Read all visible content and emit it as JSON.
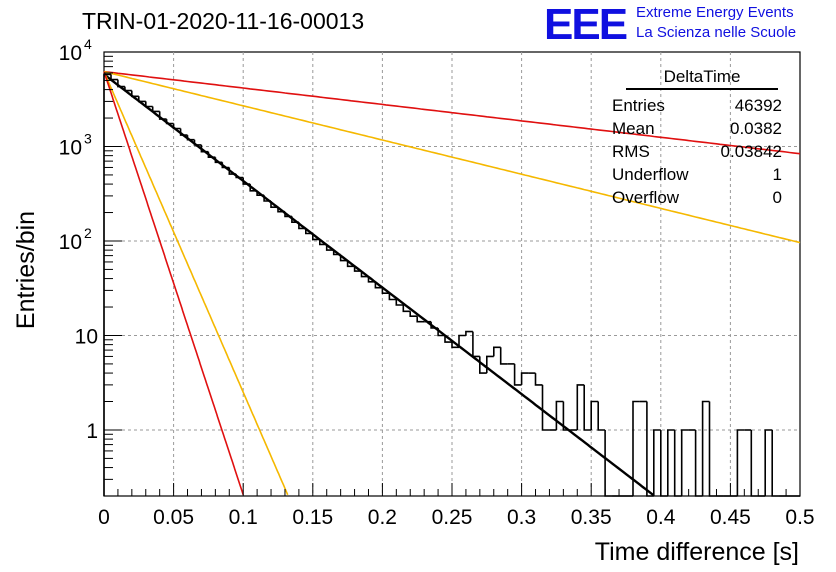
{
  "header": {
    "run_title": "TRIN-01-2020-11-16-00013",
    "logo_text": "EEE",
    "logo_line1": "Extreme Energy Events",
    "logo_line2": "La Scienza nelle Scuole"
  },
  "stats": {
    "title": "DeltaTime",
    "rows": [
      {
        "label": "Entries",
        "value": "46392"
      },
      {
        "label": "Mean",
        "value": "0.0382"
      },
      {
        "label": "RMS",
        "value": "0.03842"
      },
      {
        "label": "Underflow",
        "value": "1"
      },
      {
        "label": "Overflow",
        "value": "0"
      }
    ]
  },
  "chart_data": {
    "type": "line",
    "title": "TRIN-01-2020-11-16-00013",
    "xlabel": "Time difference [s]",
    "ylabel": "Entries/bin",
    "xlim": [
      0,
      0.5
    ],
    "ylim": [
      0.2,
      10000
    ],
    "yscale": "log",
    "grid": true,
    "x_ticks": [
      "0",
      "0.05",
      "0.1",
      "0.15",
      "0.2",
      "0.25",
      "0.3",
      "0.35",
      "0.4",
      "0.45",
      "0.5"
    ],
    "y_ticks": [
      {
        "value": 10000,
        "label": "10",
        "exp": "4"
      },
      {
        "value": 1000,
        "label": "10",
        "exp": "3"
      },
      {
        "value": 100,
        "label": "10",
        "exp": "2"
      },
      {
        "value": 10,
        "label": "10",
        "exp": ""
      },
      {
        "value": 1,
        "label": "1",
        "exp": ""
      }
    ],
    "histogram": {
      "bin_width": 0.005,
      "color": "#000000",
      "values": [
        5800,
        5100,
        4300,
        3900,
        3400,
        3000,
        2650,
        2350,
        1950,
        1750,
        1550,
        1320,
        1180,
        1040,
        880,
        770,
        680,
        600,
        510,
        470,
        400,
        340,
        305,
        265,
        228,
        204,
        182,
        158,
        136,
        120,
        104,
        92,
        80,
        72,
        62,
        54,
        48,
        42,
        37,
        32,
        28,
        24,
        21,
        18,
        16,
        14,
        14,
        12,
        10,
        8.5,
        7.5,
        10,
        11,
        6,
        4,
        6,
        7.5,
        5,
        5,
        3,
        4,
        4,
        3,
        1,
        1,
        2,
        1,
        1,
        3,
        1,
        2,
        1,
        0.2,
        0,
        0,
        0,
        2,
        2,
        0,
        1,
        0.2,
        1,
        0,
        1,
        1,
        0,
        2,
        0,
        0,
        0,
        0,
        1,
        1,
        0,
        0,
        1,
        0,
        0,
        0,
        0
      ]
    },
    "fits": [
      {
        "name": "fit",
        "color": "#000000",
        "width": 2.4,
        "x0": 0.0,
        "y0": 5800,
        "tau": 0.0385,
        "x_end": 0.395
      },
      {
        "name": "upper-red",
        "color": "#e01010",
        "width": 1.6,
        "x0": 0.0,
        "y0": 6200,
        "tau": 0.25,
        "x_end": 0.5
      },
      {
        "name": "upper-yellow",
        "color": "#f5b800",
        "width": 1.6,
        "x0": 0.0,
        "y0": 6200,
        "tau": 0.12,
        "x_end": 0.5
      },
      {
        "name": "lower-yellow",
        "color": "#f5b800",
        "width": 1.6,
        "x0": 0.0,
        "y0": 6200,
        "tau": 0.0128,
        "x_end": 0.132
      },
      {
        "name": "lower-red",
        "color": "#e01010",
        "width": 1.6,
        "x0": 0.0,
        "y0": 6200,
        "tau": 0.0097,
        "x_end": 0.1
      }
    ]
  }
}
